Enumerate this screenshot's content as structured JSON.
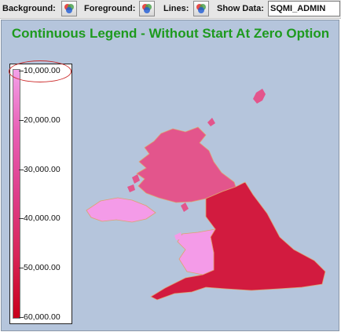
{
  "toolbar": {
    "background_label": "Background:",
    "foreground_label": "Foreground:",
    "lines_label": "Lines:",
    "show_data_label": "Show Data:",
    "show_data_value": "SQMI_ADMIN",
    "color_icon": "color-wheel-icon"
  },
  "chart_title": "Continuous Legend - Without Start At Zero Option",
  "legend": {
    "ticks": [
      "10,000.00",
      "20,000.00",
      "30,000.00",
      "40,000.00",
      "50,000.00",
      "60,000.00"
    ]
  },
  "colors": {
    "title": "#1e9a1e",
    "map_background": "#b5c5dc",
    "legend_top": "#f3a0e9",
    "legend_bottom": "#c8001a",
    "scotland": "#e3558c",
    "northern_ireland": "#f49be8",
    "wales": "#f49be8",
    "england": "#d21b3f",
    "borders": "#e0a070",
    "highlight_ellipse": "#cc2b2b"
  }
}
